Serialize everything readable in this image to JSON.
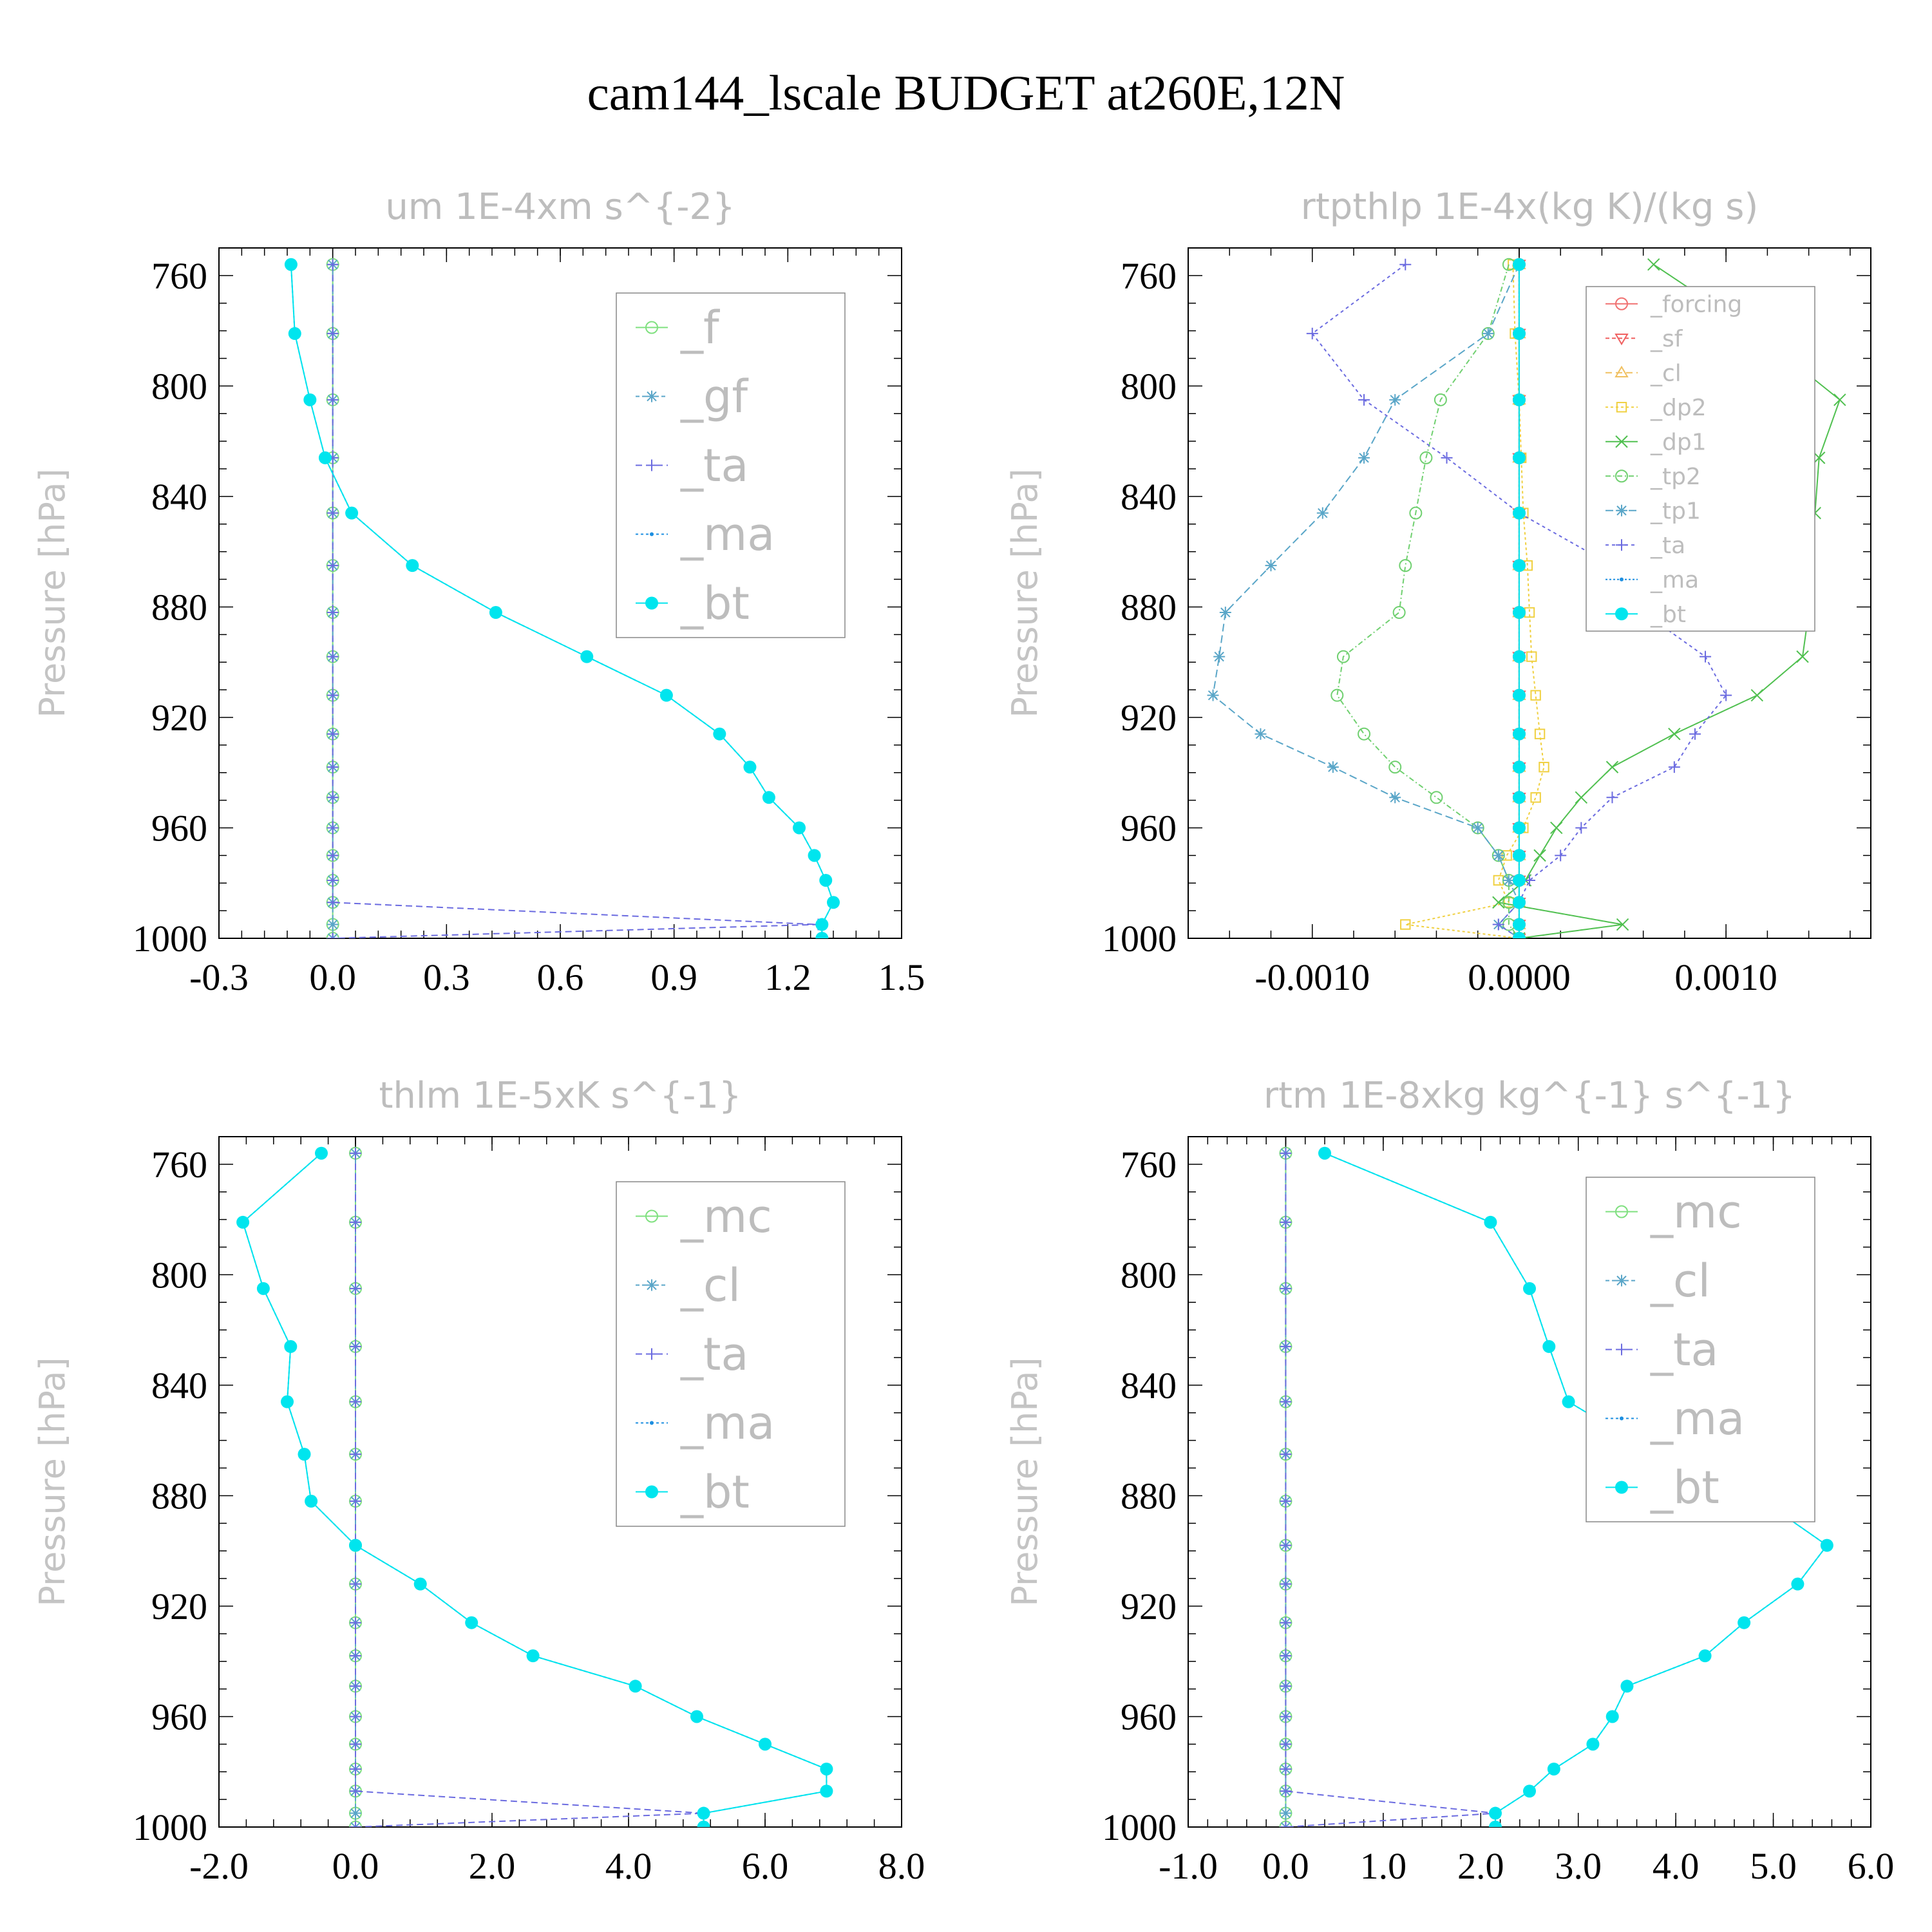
{
  "figure": {
    "title": "cam144_lscale  BUDGET at260E,12N"
  },
  "colors": {
    "f": "#7fe07f",
    "gf": "#5aa6c8",
    "ta": "#6b6be0",
    "ma": "#1e8fe0",
    "bt": "#00e5ee",
    "mc": "#7fe07f",
    "cl": "#5aa6c8",
    "forcing": "#f07070",
    "sf": "#f06060",
    "cl2": "#f0c060",
    "dp2": "#f0d040",
    "dp1": "#50c050",
    "tp2": "#70d070",
    "tp1": "#5aa6c8"
  },
  "chart_data": [
    {
      "type": "line",
      "title": "um   1E-4xm s^{-2}",
      "ylabel": "Pressure [hPa]",
      "xlim": [
        -0.3,
        1.5
      ],
      "ylim": [
        1000,
        750
      ],
      "xticks": [
        "-0.3",
        "0.0",
        "0.3",
        "0.6",
        "0.9",
        "1.2",
        "1.5"
      ],
      "yticks": [
        "760",
        "800",
        "840",
        "880",
        "920",
        "960",
        "1000"
      ],
      "legend_position": "top-right",
      "pressure": [
        756,
        781,
        805,
        826,
        846,
        865,
        882,
        898,
        912,
        926,
        938,
        949,
        960,
        970,
        979,
        987,
        995,
        1000
      ],
      "series": [
        {
          "name": "_f",
          "color_key": "f",
          "marker": "circle",
          "values": [
            0,
            0,
            0,
            0,
            0,
            0,
            0,
            0,
            0,
            0,
            0,
            0,
            0,
            0,
            0,
            0,
            0,
            0
          ]
        },
        {
          "name": "_gf",
          "color_key": "gf",
          "marker": "asterisk",
          "values": [
            0,
            0,
            0,
            0,
            0,
            0,
            0,
            0,
            0,
            0,
            0,
            0,
            0,
            0,
            0,
            0,
            0,
            0
          ]
        },
        {
          "name": "_ta",
          "color_key": "ta",
          "marker": "plus",
          "values": [
            0,
            0,
            0,
            0,
            0,
            0,
            0,
            0,
            0,
            0,
            0,
            0,
            0,
            0,
            0,
            0,
            1.28,
            0
          ]
        },
        {
          "name": "_ma",
          "color_key": "ma",
          "marker": "dot",
          "values": [
            -0.11,
            -0.1,
            -0.06,
            -0.02,
            0.05,
            0.21,
            0.43,
            0.67,
            0.88,
            1.02,
            1.1,
            1.15,
            1.23,
            1.27,
            1.3,
            1.32,
            1.29,
            1.29
          ]
        },
        {
          "name": "_bt",
          "color_key": "bt",
          "marker": "filled",
          "values": [
            -0.11,
            -0.1,
            -0.06,
            -0.02,
            0.05,
            0.21,
            0.43,
            0.67,
            0.88,
            1.02,
            1.1,
            1.15,
            1.23,
            1.27,
            1.3,
            1.32,
            1.29,
            1.29
          ]
        }
      ]
    },
    {
      "type": "line",
      "title": "rtpthlp   1E-4x(kg K)/(kg s)",
      "ylabel": "Pressure [hPa]",
      "xlim": [
        -0.0016,
        0.0017
      ],
      "ylim": [
        1000,
        750
      ],
      "xticks": [
        "-0.0010",
        "0.0000",
        "0.0010"
      ],
      "xtick_values": [
        -0.001,
        0.0,
        0.001
      ],
      "yticks": [
        "760",
        "800",
        "840",
        "880",
        "920",
        "960",
        "1000"
      ],
      "legend_position": "top-right",
      "pressure": [
        756,
        781,
        805,
        826,
        846,
        865,
        882,
        898,
        912,
        926,
        938,
        949,
        960,
        970,
        979,
        987,
        995,
        1000
      ],
      "series": [
        {
          "name": "_forcing",
          "color_key": "forcing",
          "marker": "circle",
          "values": [
            0,
            0,
            0,
            0,
            0,
            0,
            0,
            0,
            0,
            0,
            0,
            0,
            0,
            0,
            0,
            0,
            0,
            0
          ]
        },
        {
          "name": "_sf",
          "color_key": "sf",
          "marker": "tri-down",
          "values": [
            0,
            0,
            0,
            0,
            0,
            0,
            0,
            0,
            0,
            0,
            0,
            0,
            0,
            0,
            0,
            0,
            0,
            0
          ]
        },
        {
          "name": "_cl",
          "color_key": "cl2",
          "marker": "tri-up",
          "values": [
            0,
            0,
            0,
            0,
            0,
            0,
            0,
            0,
            0,
            0,
            0,
            0,
            0,
            0,
            0,
            0,
            0,
            0
          ]
        },
        {
          "name": "_dp2",
          "color_key": "dp2",
          "marker": "square",
          "values": [
            -3e-05,
            -2e-05,
            0,
            1e-05,
            2e-05,
            4e-05,
            5e-05,
            6e-05,
            8e-05,
            0.0001,
            0.00012,
            8e-05,
            2e-05,
            -6e-05,
            -0.0001,
            -5e-05,
            -0.00055,
            0
          ]
        },
        {
          "name": "_dp1",
          "color_key": "dp1",
          "marker": "x",
          "values": [
            0.00065,
            0.00115,
            0.00155,
            0.00145,
            0.00143,
            0.0014,
            0.0014,
            0.00137,
            0.00115,
            0.00075,
            0.00045,
            0.0003,
            0.00018,
            0.0001,
            3e-05,
            -0.0001,
            0.0005,
            0
          ]
        },
        {
          "name": "_tp2",
          "color_key": "tp2",
          "marker": "circle",
          "values": [
            -5e-05,
            -0.00015,
            -0.00038,
            -0.00045,
            -0.0005,
            -0.00055,
            -0.00058,
            -0.00085,
            -0.00088,
            -0.00075,
            -0.0006,
            -0.0004,
            -0.0002,
            -0.0001,
            -5e-05,
            -5e-05,
            -5e-05,
            0
          ]
        },
        {
          "name": "_tp1",
          "color_key": "tp1",
          "marker": "asterisk",
          "values": [
            0,
            -0.00015,
            -0.0006,
            -0.00075,
            -0.00095,
            -0.0012,
            -0.00142,
            -0.00145,
            -0.00148,
            -0.00125,
            -0.0009,
            -0.0006,
            -0.0002,
            -0.0001,
            -5e-05,
            0,
            -0.0001,
            0
          ]
        },
        {
          "name": "_ta",
          "color_key": "ta",
          "marker": "plus",
          "values": [
            -0.00055,
            -0.001,
            -0.00075,
            -0.00035,
            0.0,
            0.00045,
            0.0006,
            0.0009,
            0.001,
            0.00085,
            0.00075,
            0.00045,
            0.0003,
            0.0002,
            5e-05,
            0.0,
            -0.0001,
            0
          ]
        },
        {
          "name": "_ma",
          "color_key": "ma",
          "marker": "dot",
          "values": [
            0,
            0,
            0,
            0,
            0,
            0,
            0,
            0,
            0,
            0,
            0,
            0,
            0,
            0,
            0,
            0,
            0,
            0
          ]
        },
        {
          "name": "_bt",
          "color_key": "bt",
          "marker": "filled",
          "values": [
            0,
            0,
            0,
            0,
            0,
            0,
            0,
            0,
            0,
            0,
            0,
            0,
            0,
            0,
            0,
            0,
            0,
            0
          ]
        }
      ]
    },
    {
      "type": "line",
      "title": "thlm   1E-5xK s^{-1}",
      "ylabel": "Pressure [hPa]",
      "xlim": [
        -2.0,
        8.0
      ],
      "ylim": [
        1000,
        750
      ],
      "xticks": [
        "-2.0",
        "0.0",
        "2.0",
        "4.0",
        "6.0",
        "8.0"
      ],
      "yticks": [
        "760",
        "800",
        "840",
        "880",
        "920",
        "960",
        "1000"
      ],
      "legend_position": "top-right",
      "pressure": [
        756,
        781,
        805,
        826,
        846,
        865,
        882,
        898,
        912,
        926,
        938,
        949,
        960,
        970,
        979,
        987,
        995,
        1000
      ],
      "series": [
        {
          "name": "_mc",
          "color_key": "mc",
          "marker": "circle",
          "values": [
            0,
            0,
            0,
            0,
            0,
            0,
            0,
            0,
            0,
            0,
            0,
            0,
            0,
            0,
            0,
            0,
            0,
            0
          ]
        },
        {
          "name": "_cl",
          "color_key": "cl",
          "marker": "asterisk",
          "values": [
            0,
            0,
            0,
            0,
            0,
            0,
            0,
            0,
            0,
            0,
            0,
            0,
            0,
            0,
            0,
            0,
            0,
            0
          ]
        },
        {
          "name": "_ta",
          "color_key": "ta",
          "marker": "plus",
          "values": [
            0,
            0,
            0,
            0,
            0,
            0,
            0,
            0,
            0,
            0,
            0,
            0,
            0,
            0,
            0,
            0,
            5.1,
            0
          ]
        },
        {
          "name": "_ma",
          "color_key": "ma",
          "marker": "dot",
          "values": [
            -0.5,
            -1.65,
            -1.35,
            -0.95,
            -1.0,
            -0.75,
            -0.65,
            0,
            0.95,
            1.7,
            2.6,
            4.1,
            5.0,
            6.0,
            6.9,
            6.9,
            5.1,
            5.1
          ]
        },
        {
          "name": "_bt",
          "color_key": "bt",
          "marker": "filled",
          "values": [
            -0.5,
            -1.65,
            -1.35,
            -0.95,
            -1.0,
            -0.75,
            -0.65,
            0,
            0.95,
            1.7,
            2.6,
            4.1,
            5.0,
            6.0,
            6.9,
            6.9,
            5.1,
            5.1
          ]
        }
      ]
    },
    {
      "type": "line",
      "title": "rtm   1E-8xkg kg^{-1} s^{-1}",
      "ylabel": "Pressure [hPa]",
      "xlim": [
        -1.0,
        6.0
      ],
      "ylim": [
        1000,
        750
      ],
      "xticks": [
        "-1.0",
        "0.0",
        "1.0",
        "2.0",
        "3.0",
        "4.0",
        "5.0",
        "6.0"
      ],
      "yticks": [
        "760",
        "800",
        "840",
        "880",
        "920",
        "960",
        "1000"
      ],
      "legend_position": "top-right",
      "pressure": [
        756,
        781,
        805,
        826,
        846,
        865,
        882,
        898,
        912,
        926,
        938,
        949,
        960,
        970,
        979,
        987,
        995,
        1000
      ],
      "series": [
        {
          "name": "_mc",
          "color_key": "mc",
          "marker": "circle",
          "values": [
            0,
            0,
            0,
            0,
            0,
            0,
            0,
            0,
            0,
            0,
            0,
            0,
            0,
            0,
            0,
            0,
            0,
            0
          ]
        },
        {
          "name": "_cl",
          "color_key": "cl",
          "marker": "asterisk",
          "values": [
            0,
            0,
            0,
            0,
            0,
            0,
            0,
            0,
            0,
            0,
            0,
            0,
            0,
            0,
            0,
            0,
            0,
            0
          ]
        },
        {
          "name": "_ta",
          "color_key": "ta",
          "marker": "plus",
          "values": [
            0,
            0,
            0,
            0,
            0,
            0,
            0,
            0,
            0,
            0,
            0,
            0,
            0,
            0,
            0,
            0,
            2.15,
            0
          ]
        },
        {
          "name": "_ma",
          "color_key": "ma",
          "marker": "dot",
          "values": [
            0.4,
            2.1,
            2.5,
            2.7,
            2.9,
            3.8,
            4.9,
            5.55,
            5.25,
            4.7,
            4.3,
            3.5,
            3.35,
            3.15,
            2.75,
            2.5,
            2.15,
            2.15
          ]
        },
        {
          "name": "_bt",
          "color_key": "bt",
          "marker": "filled",
          "values": [
            0.4,
            2.1,
            2.5,
            2.7,
            2.9,
            3.8,
            4.9,
            5.55,
            5.25,
            4.7,
            4.3,
            3.5,
            3.35,
            3.15,
            2.75,
            2.5,
            2.15,
            2.15
          ]
        }
      ]
    }
  ]
}
